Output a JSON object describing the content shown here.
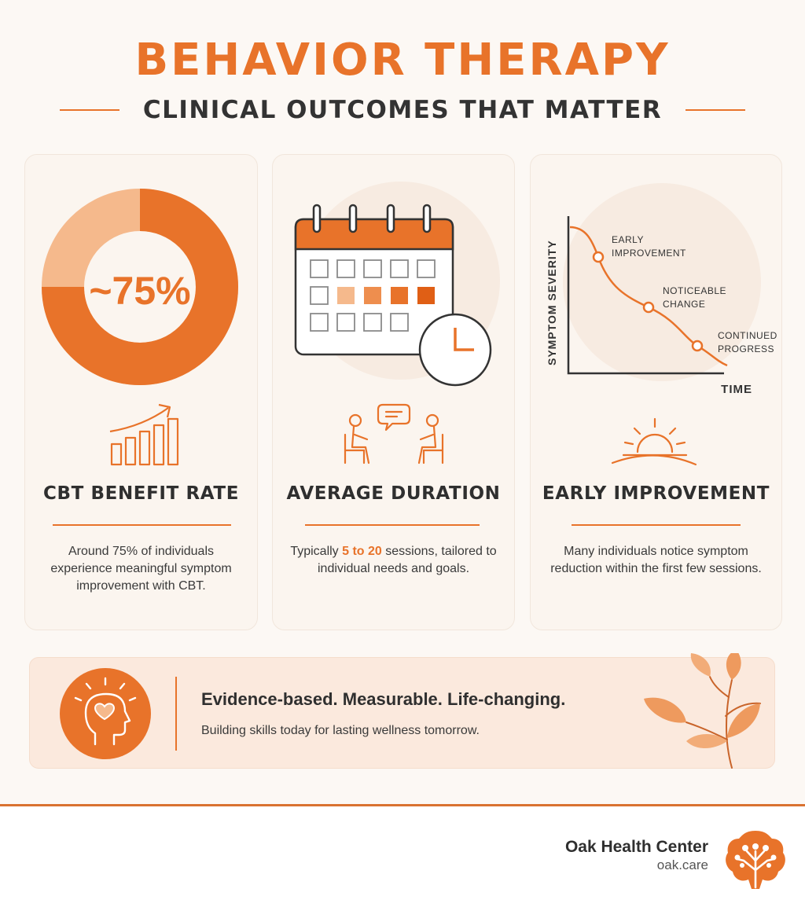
{
  "header": {
    "title": "BEHAVIOR THERAPY",
    "subtitle": "CLINICAL OUTCOMES THAT MATTER"
  },
  "colors": {
    "accent": "#e8732a",
    "accent_light": "#f5b98c",
    "background": "#fcf8f4"
  },
  "cards": [
    {
      "stat": "~75%",
      "donut_fraction": 0.75,
      "title": "CBT BENEFIT RATE",
      "text": "Around 75% of individuals experience meaningful symptom improvement with CBT.",
      "icon": "bar-chart-growth-icon"
    },
    {
      "title": "AVERAGE DURATION",
      "text_before": "Typically ",
      "text_highlight": "5 to 20",
      "text_after": " sessions, tailored to individual needs and goals.",
      "icons": [
        "calendar-icon",
        "clock-icon",
        "therapy-session-icon"
      ]
    },
    {
      "title": "EARLY IMPROVEMENT",
      "text": "Many individuals notice symptom reduction within the first few sessions.",
      "icon": "sunrise-icon",
      "chart": {
        "ylabel": "SYMPTOM SEVERITY",
        "xlabel": "TIME",
        "markers": [
          {
            "line1": "EARLY",
            "line2": "IMPROVEMENT"
          },
          {
            "line1": "NOTICEABLE",
            "line2": "CHANGE"
          },
          {
            "line1": "CONTINUED",
            "line2": "PROGRESS"
          }
        ]
      }
    }
  ],
  "banner": {
    "headline": "Evidence-based. Measurable. Life-changing.",
    "subtext": "Building skills today for lasting wellness tomorrow.",
    "icons": [
      "mind-heart-icon",
      "leaves-icon"
    ]
  },
  "footer": {
    "brand_name": "Oak Health Center",
    "brand_url": "oak.care",
    "logo": "oak-tree-brain-logo"
  }
}
